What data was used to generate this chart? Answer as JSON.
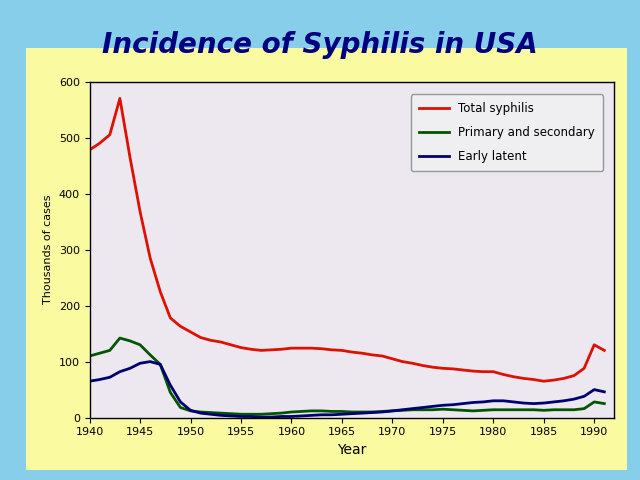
{
  "title": "Incidence of Syphilis in USA",
  "xlabel": "Year",
  "ylabel": "Thousands of cases",
  "xlim": [
    1940,
    1992
  ],
  "ylim": [
    0,
    600
  ],
  "yticks": [
    0,
    100,
    200,
    300,
    400,
    500,
    600
  ],
  "xticks": [
    1940,
    1945,
    1950,
    1955,
    1960,
    1965,
    1970,
    1975,
    1980,
    1985,
    1990
  ],
  "fig_bg_color": "#87CEEB",
  "card_bg_color": "#FAFAA0",
  "plot_bg_color": "#EDE8F0",
  "title_color": "#000080",
  "title_fontsize": 20,
  "total_syphilis": {
    "label": "Total syphilis",
    "color": "#DD1100",
    "x": [
      1940,
      1941,
      1942,
      1943,
      1944,
      1945,
      1946,
      1947,
      1948,
      1949,
      1950,
      1951,
      1952,
      1953,
      1954,
      1955,
      1956,
      1957,
      1958,
      1959,
      1960,
      1961,
      1962,
      1963,
      1964,
      1965,
      1966,
      1967,
      1968,
      1969,
      1970,
      1971,
      1972,
      1973,
      1974,
      1975,
      1976,
      1977,
      1978,
      1979,
      1980,
      1981,
      1982,
      1983,
      1984,
      1985,
      1986,
      1987,
      1988,
      1989,
      1990,
      1991
    ],
    "y": [
      478,
      490,
      505,
      570,
      465,
      368,
      285,
      225,
      178,
      163,
      153,
      143,
      138,
      135,
      130,
      125,
      122,
      120,
      121,
      122,
      124,
      124,
      124,
      123,
      121,
      120,
      117,
      115,
      112,
      110,
      105,
      100,
      97,
      93,
      90,
      88,
      87,
      85,
      83,
      82,
      82,
      77,
      73,
      70,
      68,
      65,
      67,
      70,
      75,
      88,
      130,
      120
    ]
  },
  "primary_secondary": {
    "label": "Primary and secondary",
    "color": "#005500",
    "x": [
      1940,
      1941,
      1942,
      1943,
      1944,
      1945,
      1946,
      1947,
      1948,
      1949,
      1950,
      1951,
      1952,
      1953,
      1954,
      1955,
      1956,
      1957,
      1958,
      1959,
      1960,
      1961,
      1962,
      1963,
      1964,
      1965,
      1966,
      1967,
      1968,
      1969,
      1970,
      1971,
      1972,
      1973,
      1974,
      1975,
      1976,
      1977,
      1978,
      1979,
      1980,
      1981,
      1982,
      1983,
      1984,
      1985,
      1986,
      1987,
      1988,
      1989,
      1990,
      1991
    ],
    "y": [
      110,
      115,
      120,
      142,
      137,
      130,
      112,
      95,
      45,
      18,
      12,
      10,
      9,
      8,
      7,
      6,
      6,
      6,
      7,
      8,
      10,
      11,
      12,
      12,
      11,
      11,
      10,
      10,
      10,
      11,
      12,
      13,
      14,
      14,
      14,
      15,
      14,
      13,
      12,
      13,
      14,
      14,
      14,
      14,
      14,
      13,
      14,
      14,
      14,
      16,
      28,
      25
    ]
  },
  "early_latent": {
    "label": "Early latent",
    "color": "#000070",
    "x": [
      1940,
      1941,
      1942,
      1943,
      1944,
      1945,
      1946,
      1947,
      1948,
      1949,
      1950,
      1951,
      1952,
      1953,
      1954,
      1955,
      1956,
      1957,
      1958,
      1959,
      1960,
      1961,
      1962,
      1963,
      1964,
      1965,
      1966,
      1967,
      1968,
      1969,
      1970,
      1971,
      1972,
      1973,
      1974,
      1975,
      1976,
      1977,
      1978,
      1979,
      1980,
      1981,
      1982,
      1983,
      1984,
      1985,
      1986,
      1987,
      1988,
      1989,
      1990,
      1991
    ],
    "y": [
      65,
      68,
      72,
      82,
      88,
      97,
      100,
      95,
      58,
      28,
      13,
      8,
      6,
      4,
      3,
      2,
      2,
      1,
      1,
      2,
      2,
      3,
      4,
      5,
      5,
      6,
      7,
      8,
      9,
      10,
      12,
      14,
      16,
      18,
      20,
      22,
      23,
      25,
      27,
      28,
      30,
      30,
      28,
      26,
      25,
      26,
      28,
      30,
      33,
      38,
      50,
      46
    ]
  }
}
